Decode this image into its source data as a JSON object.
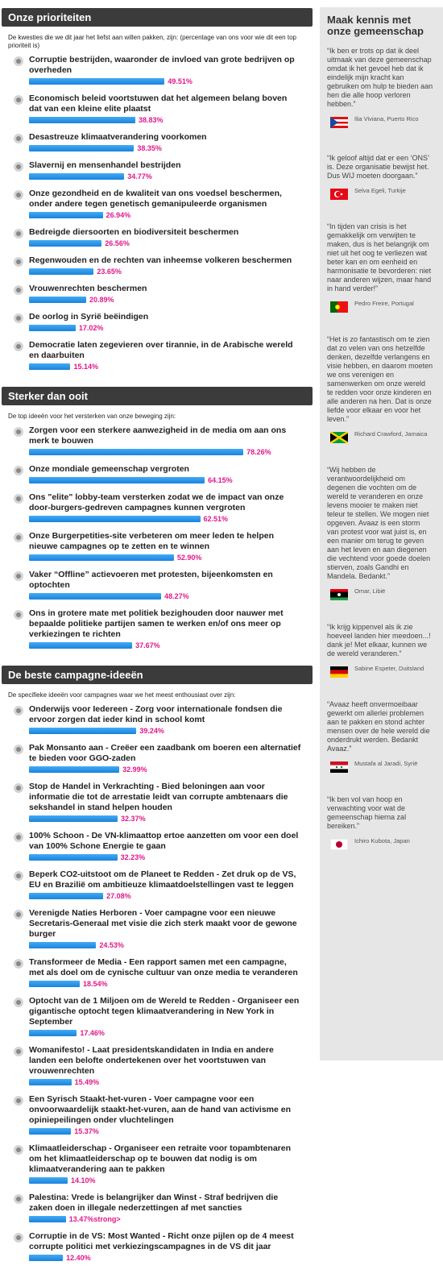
{
  "sections": [
    {
      "heading": "Onze prioriteiten",
      "intro": "De kwesties die we dit jaar het liefst aan willen pakken, zijn: (percentage van ons voor wie dit een top prioriteit is)",
      "items": [
        {
          "text": "Corruptie bestrijden, waaronder de invloed van grote bedrijven op overheden",
          "value": 49.51,
          "value_label": "49.51%"
        },
        {
          "text": "Economisch beleid voortstuwen dat het algemeen belang boven dat van een kleine elite plaatst",
          "value": 38.83,
          "value_label": "38.83%"
        },
        {
          "text": "Desastreuze klimaatverandering voorkomen",
          "value": 38.35,
          "value_label": "38.35%"
        },
        {
          "text": "Slavernij en mensenhandel bestrijden",
          "value": 34.77,
          "value_label": "34.77%"
        },
        {
          "text": "Onze gezondheid en de kwaliteit van ons voedsel beschermen, onder andere tegen genetisch gemanipuleerde organismen",
          "value": 26.94,
          "value_label": "26.94%"
        },
        {
          "text": "Bedreigde diersoorten en biodiversiteit beschermen",
          "value": 26.56,
          "value_label": "26.56%"
        },
        {
          "text": "Regenwouden en de rechten van inheemse volkeren beschermen",
          "value": 23.65,
          "value_label": "23.65%"
        },
        {
          "text": "Vrouwenrechten beschermen",
          "value": 20.89,
          "value_label": "20.89%"
        },
        {
          "text": "De oorlog in Syrië beëindigen",
          "value": 17.02,
          "value_label": "17.02%"
        },
        {
          "text": "Democratie laten zegevieren over tirannie, in de Arabische wereld en daarbuiten",
          "value": 15.14,
          "value_label": "15.14%"
        }
      ]
    },
    {
      "heading": "Sterker dan ooit",
      "intro": "De top ideeën voor het versterken van onze beweging zijn:",
      "items": [
        {
          "text": "Zorgen voor een sterkere aanwezigheid in de media om aan ons merk te bouwen",
          "value": 78.26,
          "value_label": "78.26%"
        },
        {
          "text": "Onze mondiale gemeenschap vergroten",
          "value": 64.15,
          "value_label": "64.15%"
        },
        {
          "text": "Ons \"elite\" lobby-team versterken zodat we de impact van onze door-burgers-gedreven campagnes kunnen vergroten",
          "value": 62.51,
          "value_label": "62.51%"
        },
        {
          "text": "Onze Burgerpetities-site verbeteren om meer leden te helpen nieuwe campagnes op te zetten en te winnen",
          "value": 52.9,
          "value_label": "52.90%"
        },
        {
          "text": "Vaker “Offline” actievoeren met protesten, bijeenkomsten en optochten",
          "value": 48.27,
          "value_label": "48.27%"
        },
        {
          "text": "Ons in grotere mate met politiek bezighouden door nauwer met bepaalde politieke partijen samen te werken en/of ons meer op verkiezingen te richten",
          "value": 37.67,
          "value_label": "37.67%"
        }
      ]
    },
    {
      "heading": "De beste campagne-ideeën",
      "intro": "De specifieke ideeën voor campagnes waar we het meest enthousiast over zijn:",
      "items": [
        {
          "text": "Onderwijs voor Iedereen - Zorg voor internationale fondsen die ervoor zorgen dat ieder kind in school komt",
          "value": 39.24,
          "value_label": "39.24%"
        },
        {
          "text": "Pak Monsanto aan - Creëer een zaadbank om boeren een alternatief te bieden voor GGO-zaden",
          "value": 32.99,
          "value_label": "32.99%"
        },
        {
          "text": "Stop de Handel in Verkrachting - Bied beloningen aan voor informatie die tot de arrestatie leidt van corrupte ambtenaars die sekshandel in stand helpen houden",
          "value": 32.37,
          "value_label": "32.37%"
        },
        {
          "text": "100% Schoon - De VN-klimaattop ertoe aanzetten om voor een doel van 100% Schone Energie te gaan",
          "value": 32.23,
          "value_label": "32.23%"
        },
        {
          "text": "Beperk CO2-uitstoot om de Planeet te Redden - Zet druk op de VS, EU en Brazilië om ambitieuze klimaatdoelstellingen vast te leggen",
          "value": 27.08,
          "value_label": "27.08%"
        },
        {
          "text": "Verenigde Naties Herboren - Voer campagne voor een nieuwe Secretaris-Generaal met visie die zich sterk maakt voor de gewone burger",
          "value": 24.53,
          "value_label": "24.53%"
        },
        {
          "text": "Transformeer de Media - Een rapport samen met een campagne, met als doel om de cynische cultuur van onze media te veranderen",
          "value": 18.54,
          "value_label": "18.54%"
        },
        {
          "text": "Optocht van de 1 Miljoen om de Wereld te Redden - Organiseer een gigantische optocht tegen klimaatverandering in New York in September",
          "value": 17.46,
          "value_label": "17.46%"
        },
        {
          "text": "Womanifesto! - Laat presidentskandidaten in India en andere landen een belofte ondertekenen over het voortstuwen van vrouwenrechten",
          "value": 15.49,
          "value_label": "15.49%"
        },
        {
          "text": "Een Syrisch Staakt-het-vuren - Voer campagne voor een onvoorwaardelijk staakt-het-vuren, aan de hand van activisme en opiniepeilingen onder vluchtelingen",
          "value": 15.37,
          "value_label": "15.37%"
        },
        {
          "text": "Klimaatleiderschap - Organiseer een retraite voor topambtenaren om het klimaatleiderschap op te bouwen dat nodig is om klimaatverandering aan te pakken",
          "value": 14.1,
          "value_label": "14.10%"
        },
        {
          "text": "Palestina: Vrede is belangrijker dan Winst - Straf bedrijven die zaken doen in illegale nederzettingen af met sancties",
          "value": 13.47,
          "value_label": "13.47%strong>"
        },
        {
          "text": "Corruptie in de VS: Most Wanted - Richt onze pijlen op de 4 meest corrupte politici met verkiezingscampagnes in de VS dit jaar",
          "value": 12.4,
          "value_label": "12.40%"
        }
      ]
    }
  ],
  "sidebar": {
    "title": "Maak kennis met onze gemeenschap",
    "quotes": [
      {
        "text": "“Ik ben er trots op dat ik deel uitmaak van deze gemeenschap omdat ik het gevoel heb dat ik eindelijk mijn kracht kan gebruiken om hulp te bieden aan hen die alle hoop verloren hebben.”",
        "author": "Ilia Viviana, Puerto Rico"
      },
      {
        "text": "“Ik geloof altijd dat er een ‘ONS’ is. Deze organisatie bewijst het. Dus WIJ moeten doorgaan.”",
        "author": "Selva Egeli, Turkije"
      },
      {
        "text": "“In tijden van crisis is het gemakkelijk om verwijten te maken, dus is het belangrijk om niet uit het oog te verliezen wat beter kan en om eenheid en harmonisatie te bevorderen: niet naar anderen wijzen, maar hand in hand verder!”",
        "author": "Pedro Freire, Portugal"
      },
      {
        "text": "“Het is zo fantastisch om te zien dat zo velen van ons hetzelfde denken, dezelfde verlangens en visie hebben, en daarom moeten we ons verenigen en samenwerken om onze wereld te redden voor onze kinderen en alle anderen na hen. Dat is onze liefde voor elkaar en voor het leven.”",
        "author": "Richard Crawford, Jamaica"
      },
      {
        "text": "“Wij hebben de verantwoordelijkheid om degenen die vochten om de wereld te veranderen en onze levens mooier te maken niet teleur te stellen. We mogen niet opgeven. Avaaz is een storm van protest voor wat juist is, en een manier om terug te geven aan het leven en aan diegenen die vechtend voor goede doelen stierven, zoals Gandhi en Mandela. Bedankt.”",
        "author": "Omar, Libië"
      },
      {
        "text": "“Ik krijg kippenvel als ik zie hoeveel landen hier meedoen...! dank je! Met elkaar, kunnen we de wereld veranderen.”",
        "author": "Sabine Espeter, Duitsland"
      },
      {
        "text": "“Avaaz heeft onvermoeibaar gewerkt om allerlei problemen aan te pakken en stond achter mensen over de hele wereld die onderdrukt werden. Bedankt Avaaz.”",
        "author": "Mustafa al Jaradi, Syrië"
      },
      {
        "text": "“Ik ben vol van hoop en verwachting voor wat de gemeenschap hierna zal bereiken.”",
        "author": "Ichiro Kubota, Japan"
      }
    ]
  }
}
